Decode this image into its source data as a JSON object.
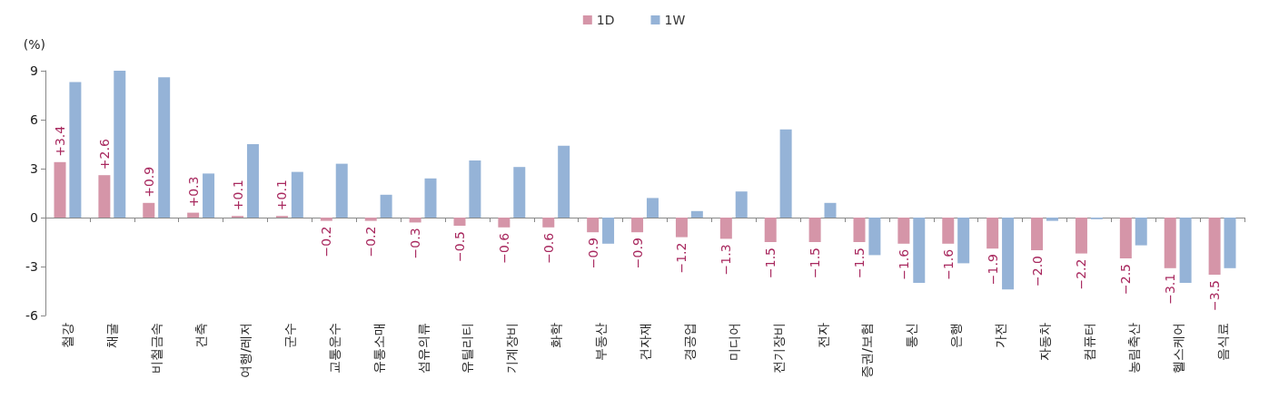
{
  "chart_data": {
    "type": "bar",
    "ylabel": "(%)",
    "categories": [
      "철강",
      "채굴",
      "비철금속",
      "건축",
      "여행/레저",
      "군수",
      "교통운수",
      "유통소매",
      "섬유의류",
      "유틸리티",
      "기계장비",
      "화학",
      "부동산",
      "건자재",
      "경공업",
      "미디어",
      "전기장비",
      "전자",
      "증권/보험",
      "통신",
      "은행",
      "가전",
      "자동차",
      "컴퓨터",
      "농림축산",
      "헬스케어",
      "음식료"
    ],
    "series": [
      {
        "name": "1D",
        "color": "#d595a8",
        "values": [
          3.4,
          2.6,
          0.9,
          0.3,
          0.1,
          0.1,
          -0.2,
          -0.2,
          -0.3,
          -0.5,
          -0.6,
          -0.6,
          -0.9,
          -0.9,
          -1.2,
          -1.3,
          -1.5,
          -1.5,
          -1.5,
          -1.6,
          -1.6,
          -1.9,
          -2.0,
          -2.2,
          -2.5,
          -3.1,
          -3.5
        ],
        "value_labels": [
          "+3.4",
          "+2.6",
          "+0.9",
          "+0.3",
          "+0.1",
          "+0.1",
          "−0.2",
          "−0.2",
          "−0.3",
          "−0.5",
          "−0.6",
          "−0.6",
          "−0.9",
          "−0.9",
          "−1.2",
          "−1.3",
          "−1.5",
          "−1.5",
          "−1.5",
          "−1.6",
          "−1.6",
          "−1.9",
          "−2.0",
          "−2.2",
          "−2.5",
          "−3.1",
          "−3.5"
        ]
      },
      {
        "name": "1W",
        "color": "#95b3d7",
        "values": [
          8.3,
          9.0,
          8.6,
          2.7,
          4.5,
          2.8,
          3.3,
          1.4,
          2.4,
          3.5,
          3.1,
          4.4,
          -1.6,
          1.2,
          0.4,
          1.6,
          5.4,
          0.9,
          -2.3,
          -4.0,
          -2.8,
          -4.4,
          -0.2,
          -0.1,
          -1.7,
          -4.0,
          -3.1
        ]
      }
    ],
    "ylim": [
      -6,
      9
    ],
    "yticks": [
      -6,
      -3,
      0,
      3,
      6,
      9
    ],
    "legend": "top"
  }
}
